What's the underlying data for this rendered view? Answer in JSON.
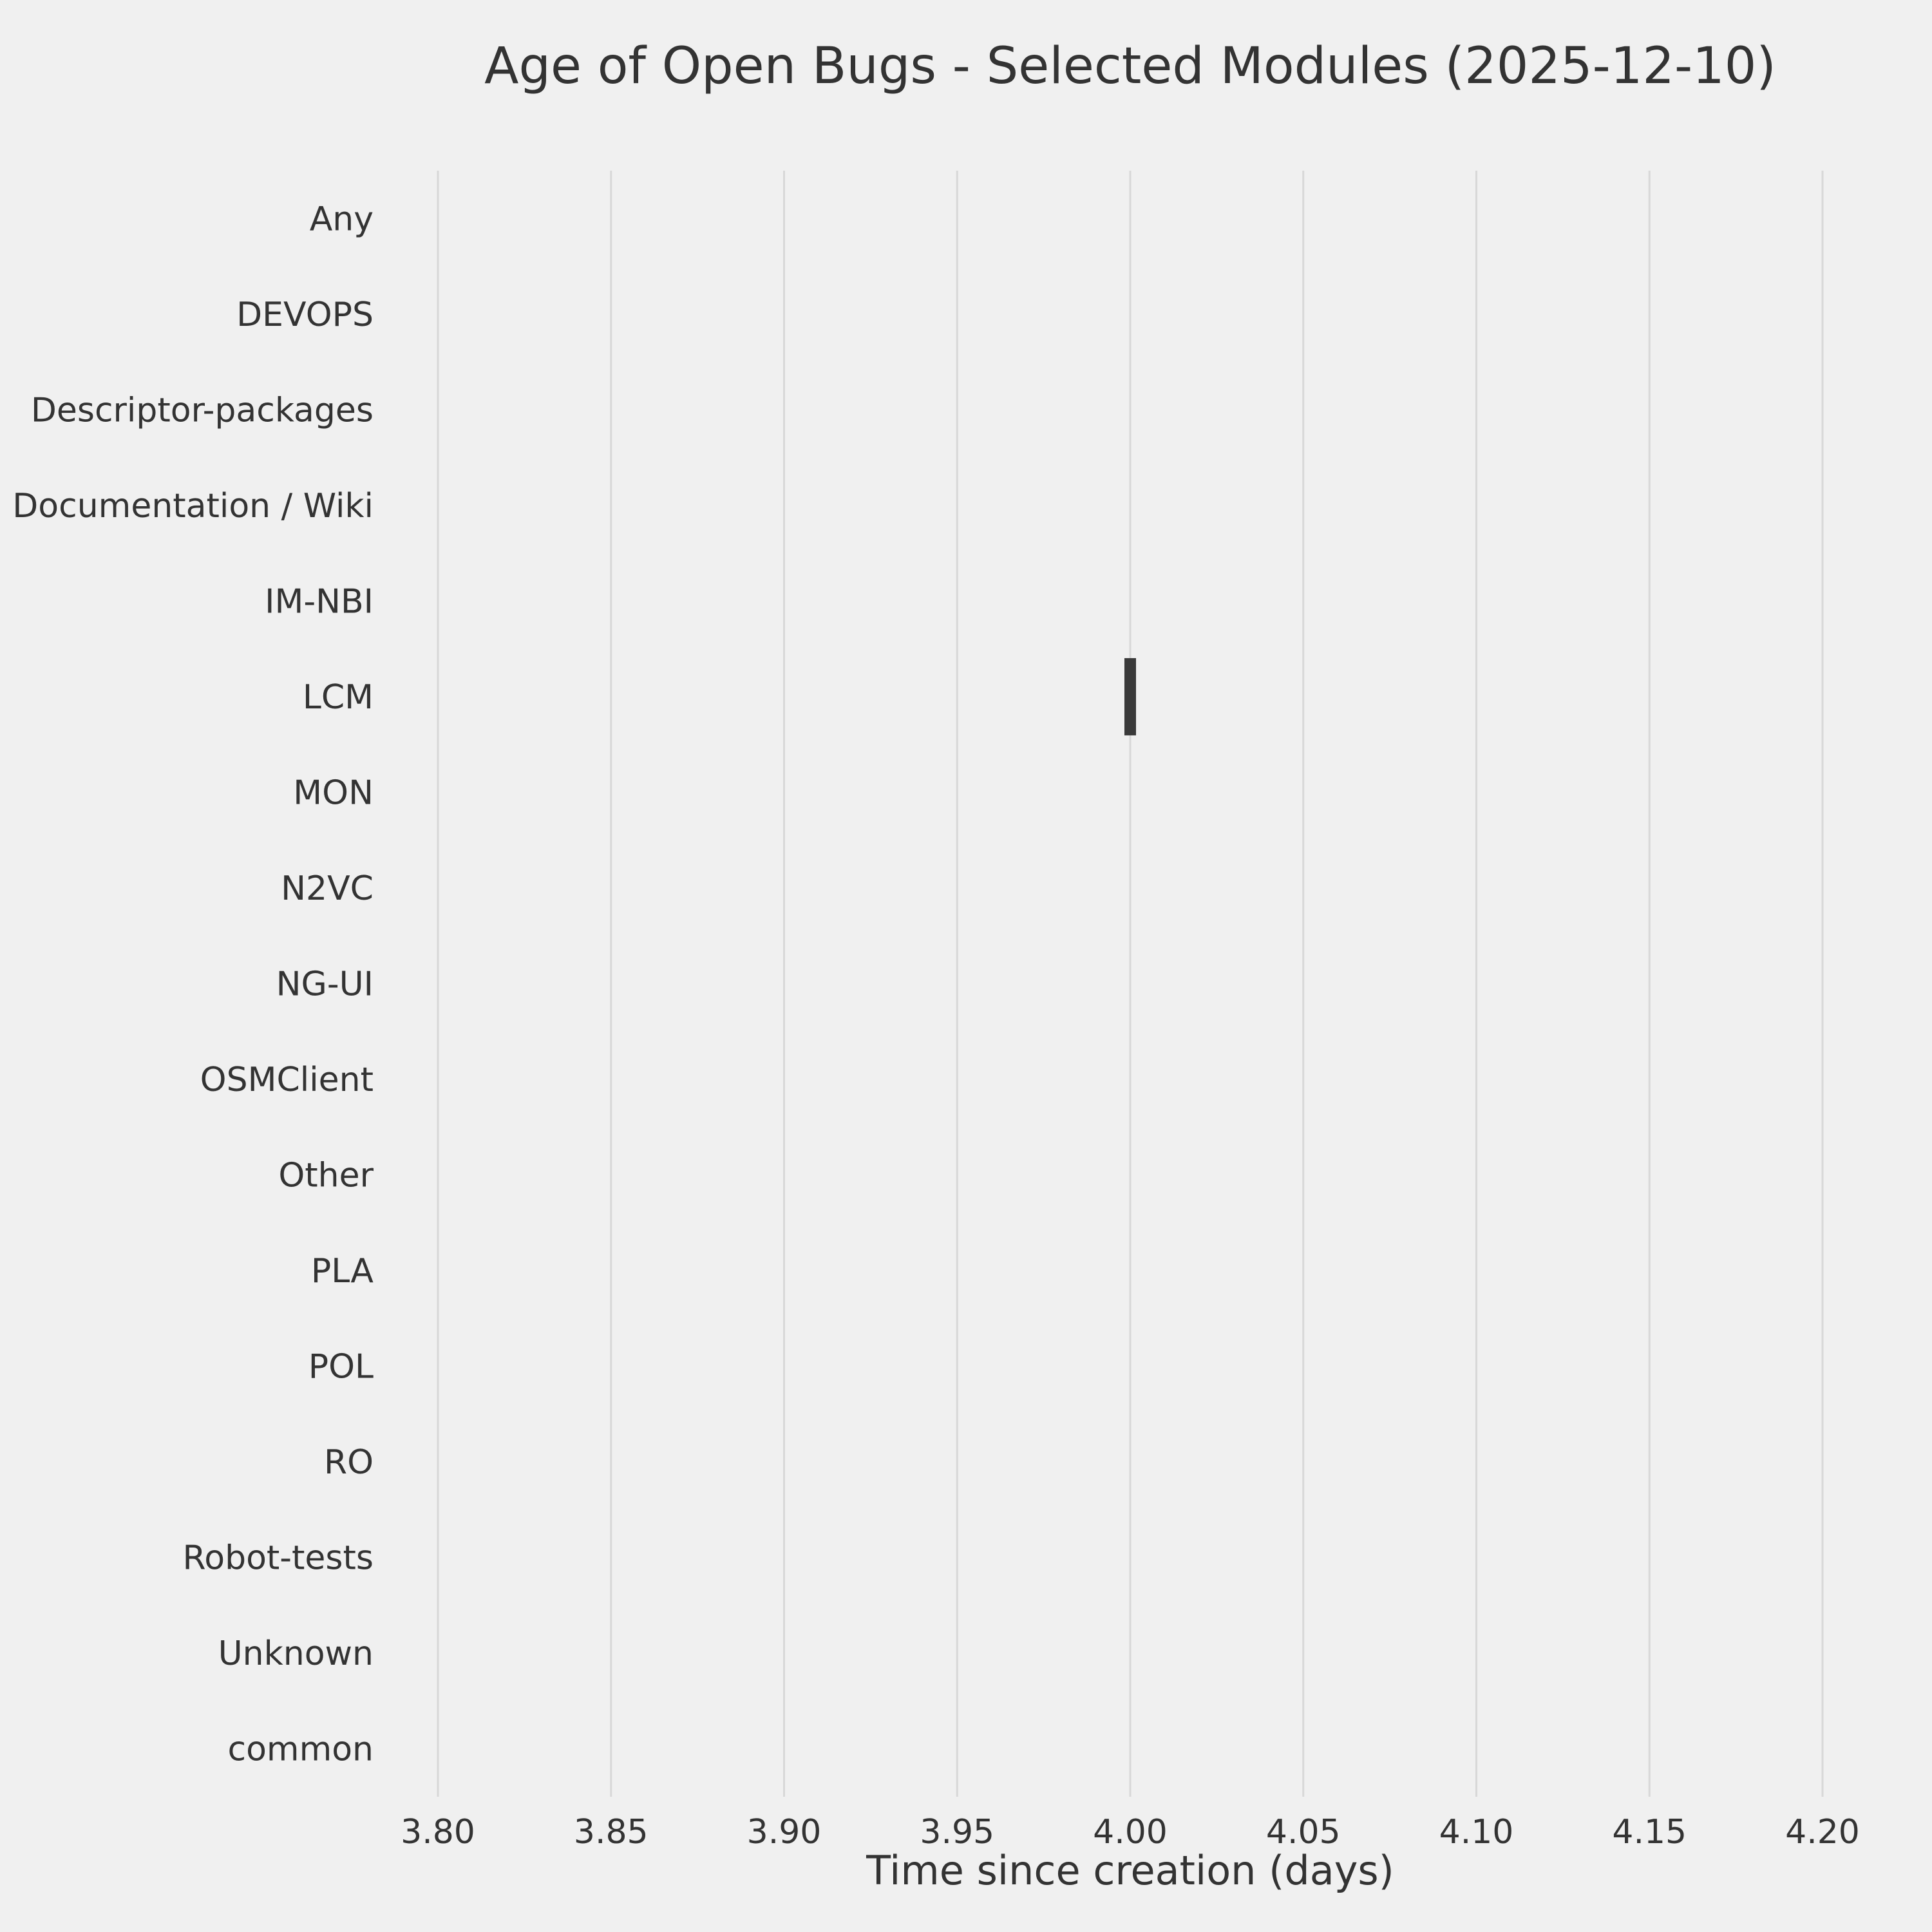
{
  "chart_data": {
    "type": "boxplot",
    "orientation": "horizontal",
    "title": "Age of Open Bugs - Selected Modules (2025-12-10)",
    "xlabel": "Time since creation (days)",
    "ylabel": "",
    "categories": [
      "Any",
      "DEVOPS",
      "Descriptor-packages",
      "Documentation / Wiki",
      "IM-NBI",
      "LCM",
      "MON",
      "N2VC",
      "NG-UI",
      "OSMClient",
      "Other",
      "PLA",
      "POL",
      "RO",
      "Robot-tests",
      "Unknown",
      "common"
    ],
    "values": [
      null,
      null,
      null,
      null,
      null,
      4.0,
      null,
      null,
      null,
      null,
      null,
      null,
      null,
      null,
      null,
      null,
      null
    ],
    "xlim": [
      3.8,
      4.2
    ],
    "xticks": [
      3.8,
      3.85,
      3.9,
      3.95,
      4.0,
      4.05,
      4.1,
      4.15,
      4.2
    ],
    "grid": true,
    "legend": "none",
    "colors": {
      "background": "#f0f0f0",
      "gridline": "#d8d8d8",
      "text": "#333333",
      "mark": "#3a3a3a"
    }
  }
}
